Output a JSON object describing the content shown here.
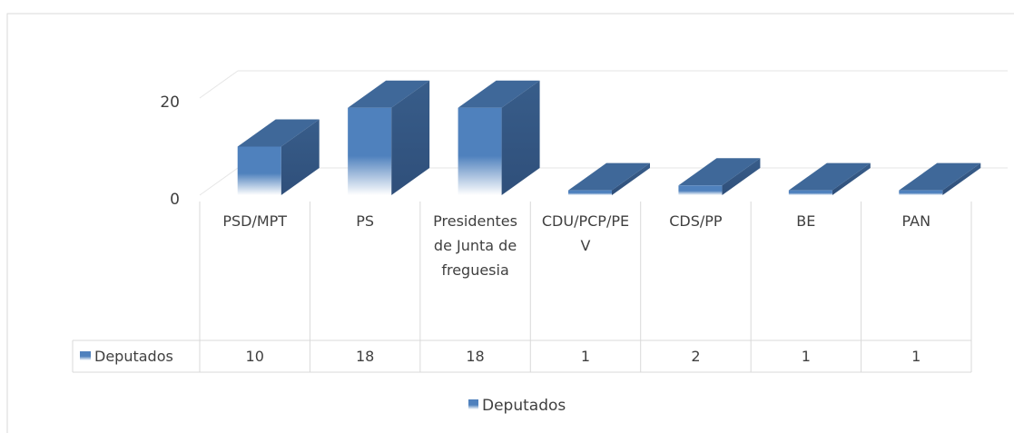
{
  "chart_data": {
    "type": "bar3d",
    "categories": [
      "PSD/MPT",
      "PS",
      "Presidentes de Junta de freguesia",
      "CDU/PCP/PEV",
      "CDS/PP",
      "BE",
      "PAN"
    ],
    "series": [
      {
        "name": "Deputados",
        "color": "#4f81bd",
        "values": [
          10,
          18,
          18,
          1,
          2,
          1,
          1
        ]
      }
    ],
    "ylim": [
      0,
      20
    ],
    "yticks": [
      0,
      20
    ],
    "grid": true,
    "legend": "bottom",
    "data_table": true
  }
}
